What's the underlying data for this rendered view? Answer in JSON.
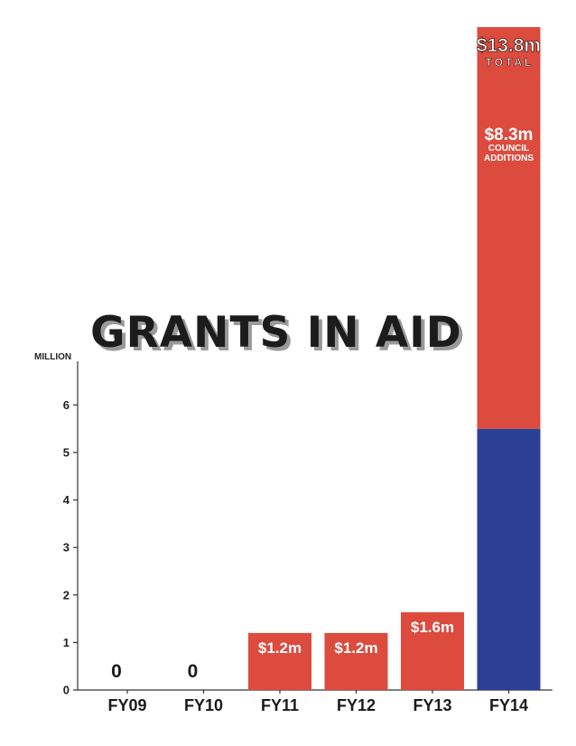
{
  "chart_data": {
    "type": "bar",
    "title": "GRANTS IN AID",
    "unit_label": "MILLION",
    "categories": [
      "FY09",
      "FY10",
      "FY11",
      "FY12",
      "FY13",
      "FY14"
    ],
    "values": [
      0,
      0,
      1.2,
      1.2,
      1.6,
      13.8
    ],
    "value_labels": [
      "0",
      "0",
      "$1.2m",
      "$1.2m",
      "$1.6m",
      ""
    ],
    "yticks": [
      0,
      1,
      2,
      3,
      4,
      5,
      6
    ],
    "ylim": [
      0,
      6.7
    ],
    "axis_break": true,
    "fy14_segments": {
      "base_value": 5.5,
      "council_additions_value": 8.3,
      "council_label": "$8.3m",
      "council_caption_line1": "COUNCIL",
      "council_caption_line2": "ADDITIONS",
      "total_label": "$13.8m",
      "total_caption": "TOTAL"
    },
    "colors": {
      "red": "#dc4b3e",
      "blue": "#2b3f93",
      "axis": "#333333"
    }
  }
}
